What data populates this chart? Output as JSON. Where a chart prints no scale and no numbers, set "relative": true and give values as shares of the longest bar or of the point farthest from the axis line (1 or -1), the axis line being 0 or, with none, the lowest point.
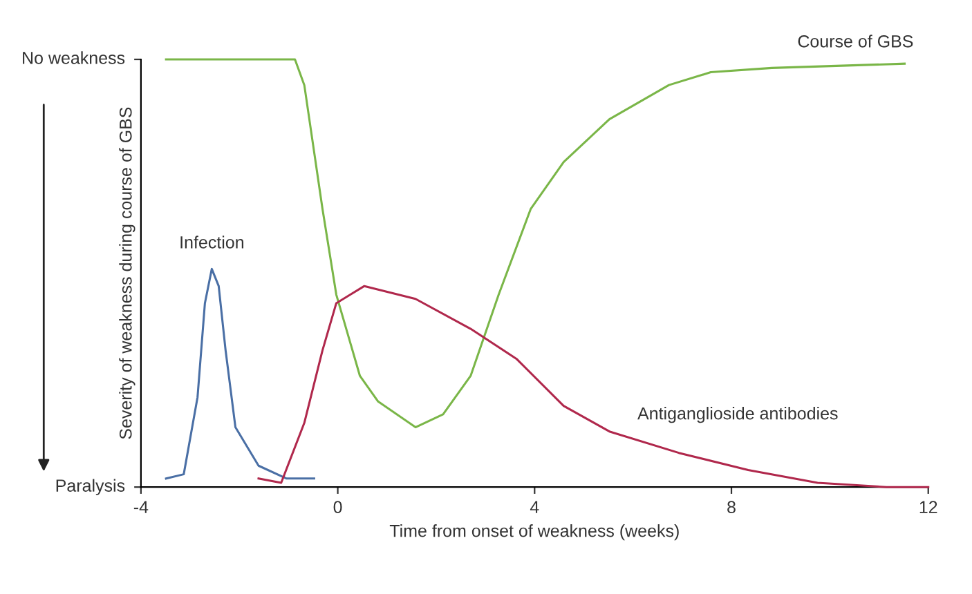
{
  "chart_data": {
    "type": "line",
    "xlabel": "Time from onset of weakness (weeks)",
    "ylabel": "Severity of weakness during course of GBS",
    "xlim": [
      -4,
      12
    ],
    "xticks": [
      -4,
      0,
      4,
      8,
      12
    ],
    "relative": true,
    "annotations": [
      "No weakness",
      "Paralysis"
    ],
    "grid": false,
    "legend": false,
    "marker": "none",
    "line_style": "solid",
    "series": [
      {
        "name": "Infection",
        "color": "#4a6fa5",
        "x": [
          -3.49,
          -3.13,
          -2.85,
          -2.7,
          -2.56,
          -2.42,
          -2.28,
          -2.08,
          -1.61,
          -1.04,
          -0.48
        ],
        "values": [
          0.02,
          0.03,
          0.21,
          0.43,
          0.51,
          0.47,
          0.32,
          0.14,
          0.05,
          0.02,
          0.02
        ]
      },
      {
        "name": "Course of GBS",
        "color": "#7ab648",
        "x": [
          -3.49,
          -1.1,
          -0.87,
          -0.68,
          -0.31,
          -0.03,
          0.45,
          0.82,
          1.58,
          2.14,
          2.7,
          3.27,
          3.92,
          4.59,
          5.52,
          6.73,
          7.58,
          8.82,
          11.52
        ],
        "values": [
          1.0,
          1.0,
          1.0,
          0.94,
          0.65,
          0.45,
          0.26,
          0.2,
          0.14,
          0.17,
          0.26,
          0.45,
          0.65,
          0.76,
          0.86,
          0.94,
          0.97,
          0.98,
          0.99
        ]
      },
      {
        "name": "Antiganglioside antibodies",
        "color": "#b0284c",
        "x": [
          -1.61,
          -1.15,
          -0.68,
          -0.31,
          -0.03,
          0.54,
          1.58,
          2.7,
          3.63,
          4.59,
          5.52,
          6.93,
          8.34,
          9.75,
          11.15,
          12.0
        ],
        "values": [
          0.02,
          0.01,
          0.15,
          0.32,
          0.43,
          0.47,
          0.44,
          0.37,
          0.3,
          0.19,
          0.13,
          0.08,
          0.04,
          0.01,
          0.0,
          0.0
        ]
      }
    ]
  }
}
